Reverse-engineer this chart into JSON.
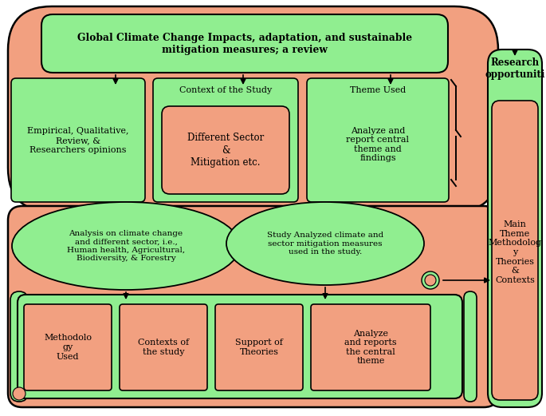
{
  "bg_color": "#FFFFFF",
  "salmon": "#F2A080",
  "green": "#90EE90",
  "black": "#000000",
  "title_text": "Global Climate Change Impacts, adaptation, and sustainable\nmitigation measures; a review",
  "box1_text": "Empirical, Qualitative,\nReview, &\nResearchers opinions",
  "box2_header": "Context of the Study",
  "box2_inner": "Different Sector\n&\nMitigation etc.",
  "box3_header": "Theme Used",
  "box3_body": "Analyze and\nreport central\ntheme and\nfindings",
  "oval1_text": "Analysis on climate change\nand different sector, i.e.,\nHuman health, Agricultural,\nBiodiversity, & Forestry",
  "oval2_text": "Study Analyzed climate and\nsector mitigation measures\nused in the study.",
  "sb1": "Methodolo\ngy\nUsed",
  "sb2": "Contexts of\nthe study",
  "sb3": "Support of\nTheories",
  "sb4": "Analyze\nand reports\nthe central\ntheme",
  "rp_title": "Research\nopportuniti",
  "rp_body": "Main\nTheme\nMethodolog\ny\nTheories\n&\nContexts",
  "fig_w": 6.85,
  "fig_h": 5.21,
  "dpi": 100
}
